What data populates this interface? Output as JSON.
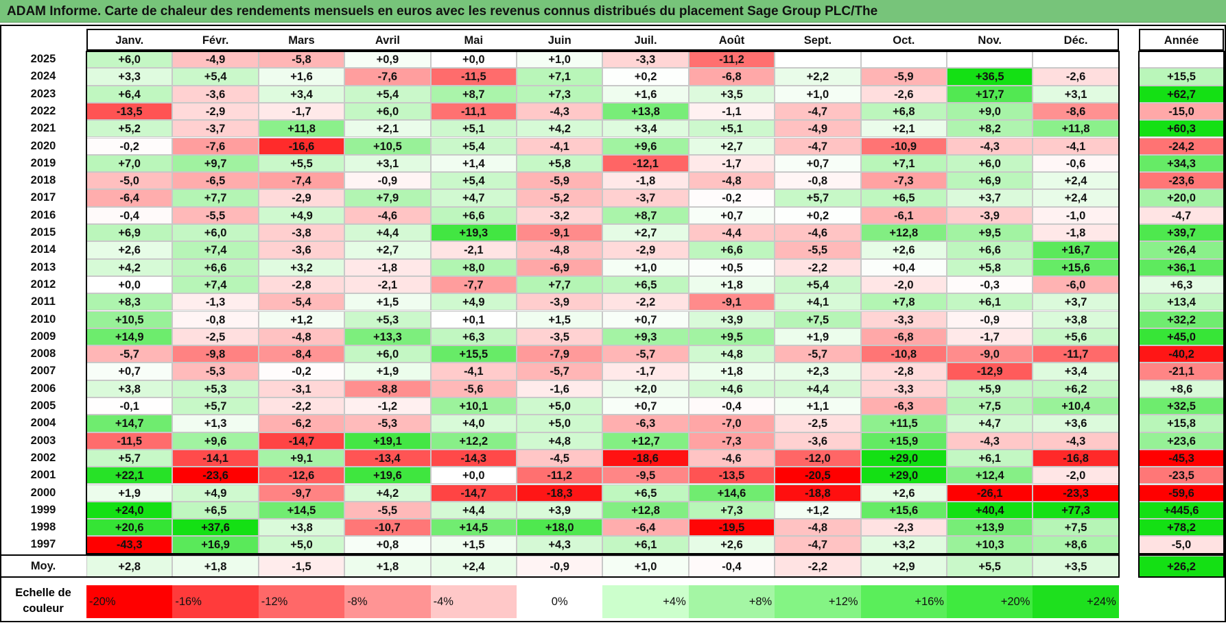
{
  "title": "ADAM Informe. Carte de chaleur des rendements mensuels en euros avec les revenus connus distribués du placement Sage Group PLC/The",
  "chart_data": {
    "type": "heatmap",
    "columns": [
      "Janv.",
      "Févr.",
      "Mars",
      "Avril",
      "Mai",
      "Juin",
      "Juil.",
      "Août",
      "Sept.",
      "Oct.",
      "Nov.",
      "Déc."
    ],
    "year_column": "Année",
    "rows": [
      {
        "year": "2025",
        "values": [
          "+6,0",
          "-4,9",
          "-5,8",
          "+0,9",
          "+0,0",
          "+1,0",
          "-3,3",
          "-11,2",
          "",
          "",
          "",
          ""
        ],
        "annual": ""
      },
      {
        "year": "2024",
        "values": [
          "+3,3",
          "+5,4",
          "+1,6",
          "-7,6",
          "-11,5",
          "+7,1",
          "+0,2",
          "-6,8",
          "+2,2",
          "-5,9",
          "+36,5",
          "-2,6"
        ],
        "annual": "+15,5"
      },
      {
        "year": "2023",
        "values": [
          "+6,4",
          "-3,6",
          "+3,4",
          "+5,4",
          "+8,7",
          "+7,3",
          "+1,6",
          "+3,5",
          "+1,0",
          "-2,6",
          "+17,7",
          "+3,1"
        ],
        "annual": "+62,7"
      },
      {
        "year": "2022",
        "values": [
          "-13,5",
          "-2,9",
          "-1,7",
          "+6,0",
          "-11,1",
          "-4,3",
          "+13,8",
          "-1,1",
          "-4,7",
          "+6,8",
          "+9,0",
          "-8,6"
        ],
        "annual": "-15,0"
      },
      {
        "year": "2021",
        "values": [
          "+5,2",
          "-3,7",
          "+11,8",
          "+2,1",
          "+5,1",
          "+4,2",
          "+3,4",
          "+5,1",
          "-4,9",
          "+2,1",
          "+8,2",
          "+11,8"
        ],
        "annual": "+60,3"
      },
      {
        "year": "2020",
        "values": [
          "-0,2",
          "-7,6",
          "-16,6",
          "+10,5",
          "+5,4",
          "-4,1",
          "+9,6",
          "+2,7",
          "-4,7",
          "-10,9",
          "-4,3",
          "-4,1"
        ],
        "annual": "-24,2"
      },
      {
        "year": "2019",
        "values": [
          "+7,0",
          "+9,7",
          "+5,5",
          "+3,1",
          "+1,4",
          "+5,8",
          "-12,1",
          "-1,7",
          "+0,7",
          "+7,1",
          "+6,0",
          "-0,6"
        ],
        "annual": "+34,3"
      },
      {
        "year": "2018",
        "values": [
          "-5,0",
          "-6,5",
          "-7,4",
          "-0,9",
          "+5,4",
          "-5,9",
          "-1,8",
          "-4,8",
          "-0,8",
          "-7,3",
          "+6,9",
          "+2,4"
        ],
        "annual": "-23,6"
      },
      {
        "year": "2017",
        "values": [
          "-6,4",
          "+7,7",
          "-2,9",
          "+7,9",
          "+4,7",
          "-5,2",
          "-3,7",
          "-0,2",
          "+5,7",
          "+6,5",
          "+3,7",
          "+2,4"
        ],
        "annual": "+20,0"
      },
      {
        "year": "2016",
        "values": [
          "-0,4",
          "-5,5",
          "+4,9",
          "-4,6",
          "+6,6",
          "-3,2",
          "+8,7",
          "+0,7",
          "+0,2",
          "-6,1",
          "-3,9",
          "-1,0"
        ],
        "annual": "-4,7"
      },
      {
        "year": "2015",
        "values": [
          "+6,9",
          "+6,0",
          "-3,8",
          "+4,4",
          "+19,3",
          "-9,1",
          "+2,7",
          "-4,4",
          "-4,6",
          "+12,8",
          "+9,5",
          "-1,8"
        ],
        "annual": "+39,7"
      },
      {
        "year": "2014",
        "values": [
          "+2,6",
          "+7,4",
          "-3,6",
          "+2,7",
          "-2,1",
          "-4,8",
          "-2,9",
          "+6,6",
          "-5,5",
          "+2,6",
          "+6,6",
          "+16,7"
        ],
        "annual": "+26,4"
      },
      {
        "year": "2013",
        "values": [
          "+4,2",
          "+6,6",
          "+3,2",
          "-1,8",
          "+8,0",
          "-6,9",
          "+1,0",
          "+0,5",
          "-2,2",
          "+0,4",
          "+5,8",
          "+15,6"
        ],
        "annual": "+36,1"
      },
      {
        "year": "2012",
        "values": [
          "+0,0",
          "+7,4",
          "-2,8",
          "-2,1",
          "-7,7",
          "+7,7",
          "+6,5",
          "+1,8",
          "+5,4",
          "-2,0",
          "-0,3",
          "-6,0"
        ],
        "annual": "+6,3"
      },
      {
        "year": "2011",
        "values": [
          "+8,3",
          "-1,3",
          "-5,4",
          "+1,5",
          "+4,9",
          "-3,9",
          "-2,2",
          "-9,1",
          "+4,1",
          "+7,8",
          "+6,1",
          "+3,7"
        ],
        "annual": "+13,4"
      },
      {
        "year": "2010",
        "values": [
          "+10,5",
          "-0,8",
          "+1,2",
          "+5,3",
          "+0,1",
          "+1,5",
          "+0,7",
          "+3,9",
          "+7,5",
          "-3,3",
          "-0,9",
          "+3,8"
        ],
        "annual": "+32,2"
      },
      {
        "year": "2009",
        "values": [
          "+14,9",
          "-2,5",
          "-4,8",
          "+13,3",
          "+6,3",
          "-3,5",
          "+9,3",
          "+9,5",
          "+1,9",
          "-6,8",
          "-1,7",
          "+5,6"
        ],
        "annual": "+45,0"
      },
      {
        "year": "2008",
        "values": [
          "-5,7",
          "-9,8",
          "-8,4",
          "+6,0",
          "+15,5",
          "-7,9",
          "-5,7",
          "+4,8",
          "-5,7",
          "-10,8",
          "-9,0",
          "-11,7"
        ],
        "annual": "-40,2"
      },
      {
        "year": "2007",
        "values": [
          "+0,7",
          "-5,3",
          "-0,2",
          "+1,9",
          "-4,1",
          "-5,7",
          "-1,7",
          "+1,8",
          "+2,3",
          "-2,8",
          "-12,9",
          "+3,4"
        ],
        "annual": "-21,1"
      },
      {
        "year": "2006",
        "values": [
          "+3,8",
          "+5,3",
          "-3,1",
          "-8,8",
          "-5,6",
          "-1,6",
          "+2,0",
          "+4,6",
          "+4,4",
          "-3,3",
          "+5,9",
          "+6,2"
        ],
        "annual": "+8,6"
      },
      {
        "year": "2005",
        "values": [
          "-0,1",
          "+5,7",
          "-2,2",
          "-1,2",
          "+10,1",
          "+5,0",
          "+0,7",
          "-0,4",
          "+1,1",
          "-6,3",
          "+7,5",
          "+10,4"
        ],
        "annual": "+32,5"
      },
      {
        "year": "2004",
        "values": [
          "+14,7",
          "+1,3",
          "-6,2",
          "-5,3",
          "+4,0",
          "+5,0",
          "-6,3",
          "-7,0",
          "-2,5",
          "+11,5",
          "+4,7",
          "+3,6"
        ],
        "annual": "+15,8"
      },
      {
        "year": "2003",
        "values": [
          "-11,5",
          "+9,6",
          "-14,7",
          "+19,1",
          "+12,2",
          "+4,8",
          "+12,7",
          "-7,3",
          "-3,6",
          "+15,9",
          "-4,3",
          "-4,3"
        ],
        "annual": "+23,6"
      },
      {
        "year": "2002",
        "values": [
          "+5,7",
          "-14,1",
          "+9,1",
          "-13,4",
          "-14,3",
          "-4,5",
          "-18,6",
          "-4,6",
          "-12,0",
          "+29,0",
          "+6,1",
          "-16,8"
        ],
        "annual": "-45,3"
      },
      {
        "year": "2001",
        "values": [
          "+22,1",
          "-23,6",
          "-12,6",
          "+19,6",
          "+0,0",
          "-11,2",
          "-9,5",
          "-13,5",
          "-20,5",
          "+29,0",
          "+12,4",
          "-2,0"
        ],
        "annual": "-23,5"
      },
      {
        "year": "2000",
        "values": [
          "+1,9",
          "+4,9",
          "-9,7",
          "+4,2",
          "-14,7",
          "-18,3",
          "+6,5",
          "+14,6",
          "-18,8",
          "+2,6",
          "-26,1",
          "-23,3"
        ],
        "annual": "-59,6"
      },
      {
        "year": "1999",
        "values": [
          "+24,0",
          "+6,5",
          "+14,5",
          "-5,5",
          "+4,4",
          "+3,9",
          "+12,8",
          "+7,3",
          "+1,2",
          "+15,6",
          "+40,4",
          "+77,3"
        ],
        "annual": "+445,6"
      },
      {
        "year": "1998",
        "values": [
          "+20,6",
          "+37,6",
          "+3,8",
          "-10,7",
          "+14,5",
          "+18,0",
          "-6,4",
          "-19,5",
          "-4,8",
          "-2,3",
          "+13,9",
          "+7,5"
        ],
        "annual": "+78,2"
      },
      {
        "year": "1997",
        "values": [
          "-43,3",
          "+16,9",
          "+5,0",
          "+0,8",
          "+1,5",
          "+4,3",
          "+6,1",
          "+2,6",
          "-4,7",
          "+3,2",
          "+10,3",
          "+8,6"
        ],
        "annual": "-5,0"
      }
    ],
    "average": {
      "label": "Moy.",
      "values": [
        "+2,8",
        "+1,8",
        "-1,5",
        "+1,8",
        "+2,4",
        "-0,9",
        "+1,0",
        "-0,4",
        "-2,2",
        "+2,9",
        "+5,5",
        "+3,5"
      ],
      "annual": "+26,2"
    },
    "scale": {
      "label": "Echelle de couleur",
      "steps": [
        {
          "label": "-20%",
          "color": "#ff0000",
          "align": "left"
        },
        {
          "label": "-16%",
          "color": "#ff3b3b",
          "align": "left"
        },
        {
          "label": "-12%",
          "color": "#ff6868",
          "align": "left"
        },
        {
          "label": "-8%",
          "color": "#ff9494",
          "align": "left"
        },
        {
          "label": "-4%",
          "color": "#ffc8c8",
          "align": "left"
        },
        {
          "label": "0%",
          "color": "#ffffff",
          "align": "center"
        },
        {
          "label": "+4%",
          "color": "#ccffcc",
          "align": "right"
        },
        {
          "label": "+8%",
          "color": "#a4f6a4",
          "align": "right"
        },
        {
          "label": "+12%",
          "color": "#84f484",
          "align": "right"
        },
        {
          "label": "+16%",
          "color": "#5aee5a",
          "align": "right"
        },
        {
          "label": "+20%",
          "color": "#3fea3f",
          "align": "right"
        },
        {
          "label": "+24%",
          "color": "#1ee01e",
          "align": "right"
        }
      ]
    }
  }
}
